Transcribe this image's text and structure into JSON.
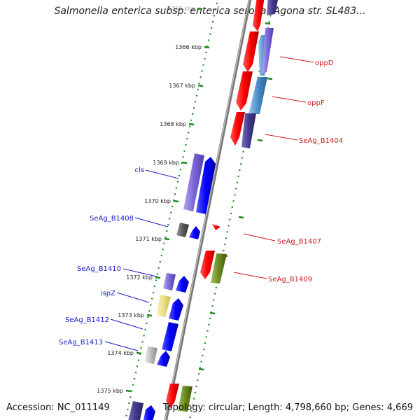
{
  "title": "Salmonella enterica subsp. enterica serovar Agona str. SL483...",
  "accession": "Accession: NC_011149",
  "topology": "Topology: circular; Length: 4,798,660 bp; Genes: 4,669",
  "colors": {
    "forward": "#1a1aff",
    "reverse": "#ff1a1a",
    "backbone": "#888888",
    "tick": "#1a8a1a",
    "left_label": "#1a1acc",
    "right_label": "#cc1a1a"
  },
  "ticks": [
    "1365 kbp",
    "1366 kbp",
    "1367 kbp",
    "1368 kbp",
    "1369 kbp",
    "1370 kbp",
    "1371 kbp",
    "1372 kbp",
    "1373 kbp",
    "1374 kbp",
    "1375 kbp"
  ],
  "labels_left": [
    "cls",
    "SeAg_B1408",
    "SeAg_B1410",
    "ispZ",
    "SeAg_B1412",
    "SeAg_B1413"
  ],
  "labels_right": [
    "oppD",
    "oppF",
    "SeAg_B1404",
    "SeAg_B1407",
    "SeAg_B1409"
  ]
}
